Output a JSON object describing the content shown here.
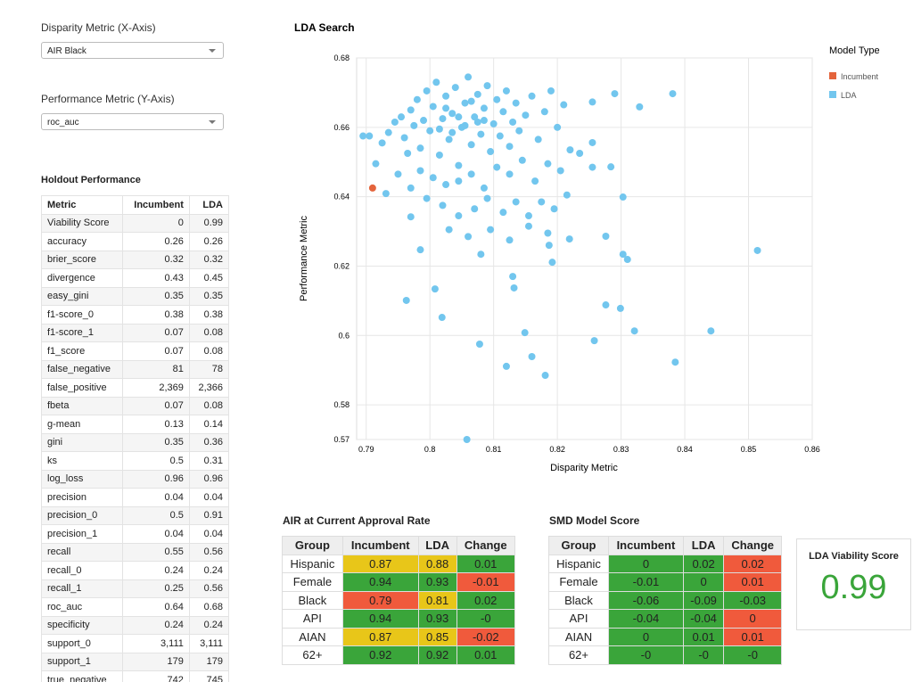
{
  "controls": {
    "x_label": "Disparity Metric (X-Axis)",
    "x_value": "AIR Black",
    "y_label": "Performance Metric (Y-Axis)",
    "y_value": "roc_auc"
  },
  "holdout": {
    "title": "Holdout Performance",
    "header": [
      "Metric",
      "Incumbent",
      "LDA"
    ],
    "rows": [
      [
        "Viability Score",
        "0",
        "0.99"
      ],
      [
        "accuracy",
        "0.26",
        "0.26"
      ],
      [
        "brier_score",
        "0.32",
        "0.32"
      ],
      [
        "divergence",
        "0.43",
        "0.45"
      ],
      [
        "easy_gini",
        "0.35",
        "0.35"
      ],
      [
        "f1-score_0",
        "0.38",
        "0.38"
      ],
      [
        "f1-score_1",
        "0.07",
        "0.08"
      ],
      [
        "f1_score",
        "0.07",
        "0.08"
      ],
      [
        "false_negative",
        "81",
        "78"
      ],
      [
        "false_positive",
        "2,369",
        "2,366"
      ],
      [
        "fbeta",
        "0.07",
        "0.08"
      ],
      [
        "g-mean",
        "0.13",
        "0.14"
      ],
      [
        "gini",
        "0.35",
        "0.36"
      ],
      [
        "ks",
        "0.5",
        "0.31"
      ],
      [
        "log_loss",
        "0.96",
        "0.96"
      ],
      [
        "precision",
        "0.04",
        "0.04"
      ],
      [
        "precision_0",
        "0.5",
        "0.91"
      ],
      [
        "precision_1",
        "0.04",
        "0.04"
      ],
      [
        "recall",
        "0.55",
        "0.56"
      ],
      [
        "recall_0",
        "0.24",
        "0.24"
      ],
      [
        "recall_1",
        "0.25",
        "0.56"
      ],
      [
        "roc_auc",
        "0.64",
        "0.68"
      ],
      [
        "specificity",
        "0.24",
        "0.24"
      ],
      [
        "support_0",
        "3,111",
        "3,111"
      ],
      [
        "support_1",
        "179",
        "179"
      ],
      [
        "true_negative",
        "742",
        "745"
      ]
    ]
  },
  "chart_data": {
    "type": "scatter",
    "title": "LDA Search",
    "x_label": "Disparity Metric",
    "y_label": "Performance Metric",
    "legend_title": "Model Type",
    "legend": "top-right",
    "grid": true,
    "xlim": [
      0.7885,
      0.86
    ],
    "xticks": [
      0.79,
      0.8,
      0.81,
      0.82,
      0.83,
      0.84,
      0.85,
      0.86
    ],
    "ylim": [
      0.57,
      0.68
    ],
    "yticks": [
      0.57,
      0.58,
      0.6,
      0.62,
      0.64,
      0.66,
      0.68
    ],
    "series": [
      {
        "name": "Incumbent",
        "color": "#e4643c",
        "x": [
          0.791
        ],
        "values": [
          0.6425
        ]
      },
      {
        "name": "LDA",
        "color": "#72c6ee",
        "x": [
          0.7935,
          0.7945,
          0.7955,
          0.796,
          0.797,
          0.7975,
          0.798,
          0.7985,
          0.799,
          0.7995,
          0.8,
          0.8005,
          0.801,
          0.8015,
          0.802,
          0.8025,
          0.803,
          0.8035,
          0.804,
          0.8045,
          0.805,
          0.8055,
          0.806,
          0.8065,
          0.807,
          0.8075,
          0.808,
          0.8085,
          0.809,
          0.8095,
          0.81,
          0.8105,
          0.811,
          0.8115,
          0.812,
          0.8125,
          0.813,
          0.8135,
          0.814,
          0.815,
          0.816,
          0.817,
          0.818,
          0.819,
          0.82,
          0.821,
          0.822,
          0.8015,
          0.8035,
          0.8055,
          0.8075,
          0.8045,
          0.8025,
          0.8065,
          0.8085,
          0.7965,
          0.7985,
          0.8005,
          0.8025,
          0.8045,
          0.8065,
          0.8085,
          0.8105,
          0.8125,
          0.8145,
          0.8165,
          0.8185,
          0.8205,
          0.8235,
          0.8255,
          0.7925,
          0.7915,
          0.7905,
          0.7895,
          0.795,
          0.797,
          0.7995,
          0.802,
          0.8045,
          0.807,
          0.809,
          0.8115,
          0.8135,
          0.8155,
          0.8175,
          0.8195,
          0.8215,
          0.803,
          0.806,
          0.8095,
          0.8125,
          0.8155,
          0.8185,
          0.8381,
          0.8514,
          0.8441,
          0.8385,
          0.8321,
          0.8299,
          0.8276,
          0.8258,
          0.8181,
          0.816,
          0.812,
          0.8078,
          0.8058,
          0.8019,
          0.7963,
          0.8008,
          0.8149,
          0.8132,
          0.813,
          0.8303,
          0.831,
          0.8276,
          0.8303,
          0.829,
          0.8329,
          0.8255,
          0.8284,
          0.8255,
          0.8219,
          0.8192,
          0.8187,
          0.808,
          0.7931,
          0.7985,
          0.797
        ],
        "values": [
          0.6585,
          0.6615,
          0.663,
          0.657,
          0.665,
          0.6605,
          0.668,
          0.654,
          0.662,
          0.6705,
          0.659,
          0.666,
          0.673,
          0.652,
          0.6625,
          0.669,
          0.6565,
          0.664,
          0.6715,
          0.649,
          0.66,
          0.667,
          0.6745,
          0.655,
          0.663,
          0.6695,
          0.658,
          0.6655,
          0.672,
          0.653,
          0.661,
          0.668,
          0.6575,
          0.6645,
          0.6705,
          0.6545,
          0.6615,
          0.667,
          0.659,
          0.6635,
          0.669,
          0.6565,
          0.6645,
          0.6705,
          0.66,
          0.6665,
          0.6535,
          0.6595,
          0.6585,
          0.6605,
          0.6615,
          0.663,
          0.6655,
          0.6675,
          0.662,
          0.6525,
          0.6475,
          0.6455,
          0.6435,
          0.6445,
          0.6465,
          0.6425,
          0.6485,
          0.6465,
          0.6505,
          0.6445,
          0.6495,
          0.6475,
          0.6525,
          0.6485,
          0.6555,
          0.6495,
          0.6575,
          0.6575,
          0.6465,
          0.6425,
          0.6395,
          0.6375,
          0.6345,
          0.6365,
          0.6395,
          0.6355,
          0.6385,
          0.6345,
          0.6385,
          0.6365,
          0.6405,
          0.6305,
          0.6285,
          0.6305,
          0.6275,
          0.6315,
          0.6295,
          0.6697,
          0.6245,
          0.6013,
          0.5923,
          0.6013,
          0.6078,
          0.6088,
          0.5985,
          0.5885,
          0.5939,
          0.5911,
          0.5975,
          0.57,
          0.6052,
          0.6101,
          0.6134,
          0.6008,
          0.6137,
          0.617,
          0.6234,
          0.6219,
          0.6286,
          0.6399,
          0.6697,
          0.6659,
          0.6673,
          0.6486,
          0.6556,
          0.6278,
          0.6211,
          0.626,
          0.6234,
          0.6409,
          0.6247,
          0.6342
        ]
      }
    ]
  },
  "air_table": {
    "title": "AIR at Current Approval Rate",
    "header": [
      "Group",
      "Incumbent",
      "LDA",
      "Change"
    ],
    "rows": [
      [
        "Hispanic",
        "0.87",
        "0.88",
        "0.01"
      ],
      [
        "Female",
        "0.94",
        "0.93",
        "-0.01"
      ],
      [
        "Black",
        "0.79",
        "0.81",
        "0.02"
      ],
      [
        "API",
        "0.94",
        "0.93",
        "-0"
      ],
      [
        "AIAN",
        "0.87",
        "0.85",
        "-0.02"
      ],
      [
        "62+",
        "0.92",
        "0.92",
        "0.01"
      ]
    ],
    "cell_colors": [
      [
        "#e8c619",
        "#e8c619",
        "#3aa53a"
      ],
      [
        "#3aa53a",
        "#3aa53a",
        "#f05a3c"
      ],
      [
        "#f05a3c",
        "#e8c619",
        "#3aa53a"
      ],
      [
        "#3aa53a",
        "#3aa53a",
        "#3aa53a"
      ],
      [
        "#e8c619",
        "#e8c619",
        "#f05a3c"
      ],
      [
        "#3aa53a",
        "#3aa53a",
        "#3aa53a"
      ]
    ]
  },
  "smd_table": {
    "title": "SMD Model Score",
    "header": [
      "Group",
      "Incumbent",
      "LDA",
      "Change"
    ],
    "rows": [
      [
        "Hispanic",
        "0",
        "0.02",
        "0.02"
      ],
      [
        "Female",
        "-0.01",
        "0",
        "0.01"
      ],
      [
        "Black",
        "-0.06",
        "-0.09",
        "-0.03"
      ],
      [
        "API",
        "-0.04",
        "-0.04",
        "0"
      ],
      [
        "AIAN",
        "0",
        "0.01",
        "0.01"
      ],
      [
        "62+",
        "-0",
        "-0",
        "-0"
      ]
    ],
    "cell_colors": [
      [
        "#3aa53a",
        "#3aa53a",
        "#f05a3c"
      ],
      [
        "#3aa53a",
        "#3aa53a",
        "#f05a3c"
      ],
      [
        "#3aa53a",
        "#3aa53a",
        "#3aa53a"
      ],
      [
        "#3aa53a",
        "#3aa53a",
        "#f05a3c"
      ],
      [
        "#3aa53a",
        "#3aa53a",
        "#f05a3c"
      ],
      [
        "#3aa53a",
        "#3aa53a",
        "#3aa53a"
      ]
    ]
  },
  "viability": {
    "label": "LDA Viability Score",
    "value": "0.99"
  }
}
